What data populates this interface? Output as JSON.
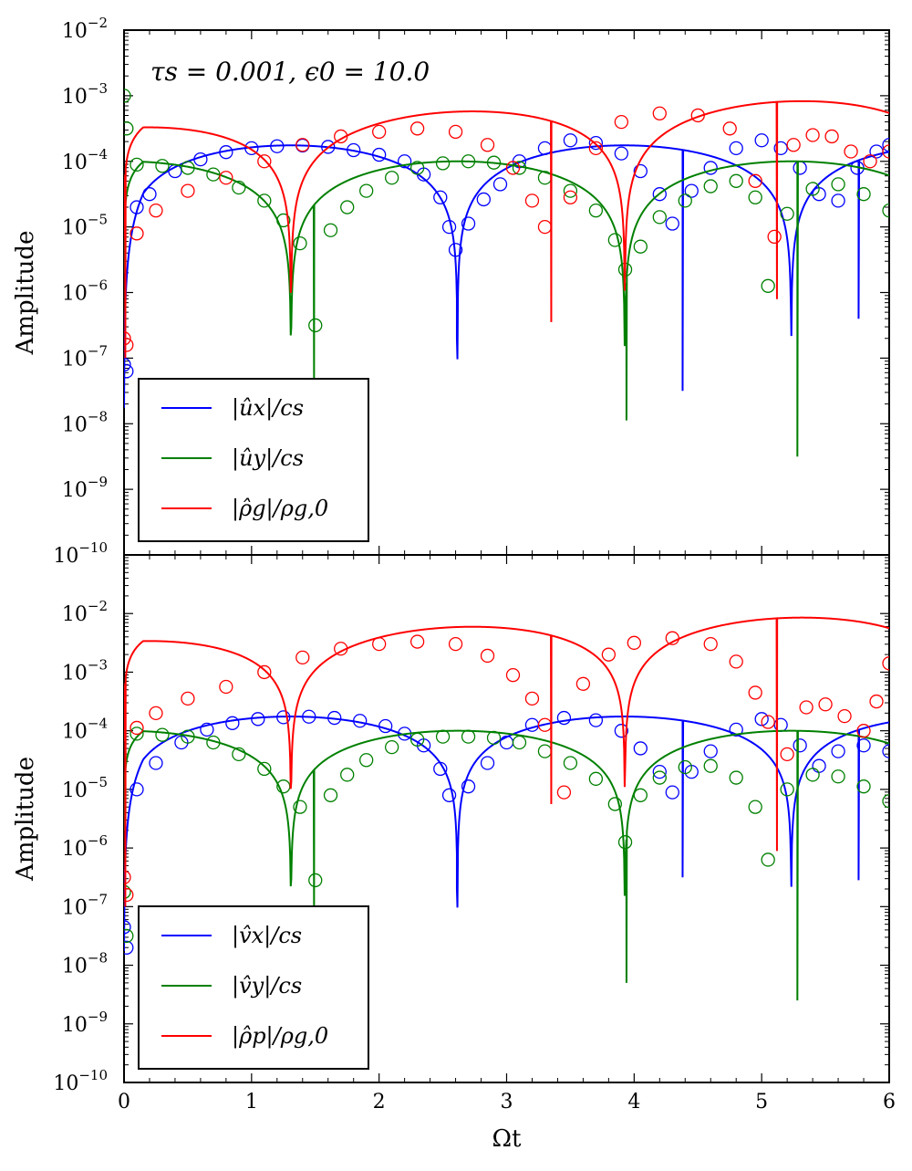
{
  "chart_data": [
    {
      "type": "line",
      "panel": "top",
      "annotation": "τs = 0.001, ϵ0 = 10.0",
      "ylabel": "Amplitude",
      "xlabel": "",
      "xlim": [
        0,
        6
      ],
      "ylim_exp": [
        -10,
        -2
      ],
      "yscale": "log",
      "yticks": [
        {
          "base": "10",
          "exp": "−10"
        },
        {
          "base": "10",
          "exp": "−9"
        },
        {
          "base": "10",
          "exp": "−8"
        },
        {
          "base": "10",
          "exp": "−7"
        },
        {
          "base": "10",
          "exp": "−6"
        },
        {
          "base": "10",
          "exp": "−5"
        },
        {
          "base": "10",
          "exp": "−4"
        },
        {
          "base": "10",
          "exp": "−3"
        },
        {
          "base": "10",
          "exp": "−2"
        }
      ],
      "legend_position": "lower-left",
      "series": [
        {
          "name": "|ûx|/cs",
          "color": "#0000ff",
          "line": {
            "A": 0.000175,
            "omega": 1.2,
            "phase": 0.005,
            "nulls": [
              [
                2.61,
                -6.7
              ],
              [
                4.38,
                -7.5
              ],
              [
                5.76,
                -6.4
              ]
            ]
          },
          "points": [
            [
              0,
              -7.1
            ],
            [
              0.02,
              -7.2
            ],
            [
              0.1,
              -4.7
            ],
            [
              0.2,
              -4.5
            ],
            [
              0.4,
              -4.15
            ],
            [
              0.6,
              -3.97
            ],
            [
              0.8,
              -3.86
            ],
            [
              1.0,
              -3.8
            ],
            [
              1.2,
              -3.77
            ],
            [
              1.4,
              -3.76
            ],
            [
              1.6,
              -3.78
            ],
            [
              1.8,
              -3.83
            ],
            [
              2.0,
              -3.9
            ],
            [
              2.2,
              -4.0
            ],
            [
              2.35,
              -4.2
            ],
            [
              2.48,
              -4.55
            ],
            [
              2.55,
              -5.0
            ],
            [
              2.6,
              -5.35
            ],
            [
              2.7,
              -4.95
            ],
            [
              2.82,
              -4.58
            ],
            [
              2.95,
              -4.35
            ],
            [
              3.1,
              -4.0
            ],
            [
              3.3,
              -3.8
            ],
            [
              3.5,
              -3.68
            ],
            [
              3.7,
              -3.72
            ],
            [
              3.9,
              -3.88
            ],
            [
              4.05,
              -4.15
            ],
            [
              4.2,
              -4.5
            ],
            [
              4.3,
              -4.95
            ],
            [
              4.45,
              -4.45
            ],
            [
              4.6,
              -4.1
            ],
            [
              4.8,
              -3.8
            ],
            [
              5.0,
              -3.68
            ],
            [
              5.15,
              -3.8
            ],
            [
              5.3,
              -4.1
            ],
            [
              5.45,
              -4.5
            ],
            [
              5.6,
              -4.6
            ],
            [
              5.75,
              -4.1
            ],
            [
              5.9,
              -3.85
            ],
            [
              6.0,
              -3.75
            ]
          ]
        },
        {
          "name": "|ûy|/cs",
          "color": "#008000",
          "line": {
            "A": 0.0001,
            "omega": 1.2,
            "phase": 1.5708,
            "nulls": [
              [
                1.49,
                -7.3
              ],
              [
                3.94,
                -7.95
              ],
              [
                5.28,
                -8.5
              ]
            ]
          },
          "points": [
            [
              0,
              -3.0
            ],
            [
              0.02,
              -3.5
            ],
            [
              0.1,
              -4.05
            ],
            [
              0.3,
              -4.07
            ],
            [
              0.5,
              -4.1
            ],
            [
              0.7,
              -4.2
            ],
            [
              0.9,
              -4.4
            ],
            [
              1.1,
              -4.6
            ],
            [
              1.25,
              -4.9
            ],
            [
              1.38,
              -5.25
            ],
            [
              1.5,
              -6.5
            ],
            [
              1.62,
              -5.05
            ],
            [
              1.75,
              -4.7
            ],
            [
              1.9,
              -4.45
            ],
            [
              2.1,
              -4.25
            ],
            [
              2.3,
              -4.1
            ],
            [
              2.5,
              -4.03
            ],
            [
              2.7,
              -4.0
            ],
            [
              2.9,
              -4.02
            ],
            [
              3.1,
              -4.1
            ],
            [
              3.3,
              -4.25
            ],
            [
              3.5,
              -4.45
            ],
            [
              3.7,
              -4.75
            ],
            [
              3.85,
              -5.2
            ],
            [
              3.93,
              -5.65
            ],
            [
              4.05,
              -5.3
            ],
            [
              4.2,
              -4.85
            ],
            [
              4.4,
              -4.6
            ],
            [
              4.6,
              -4.38
            ],
            [
              4.8,
              -4.3
            ],
            [
              4.95,
              -4.55
            ],
            [
              5.05,
              -5.9
            ],
            [
              5.2,
              -4.8
            ],
            [
              5.4,
              -4.42
            ],
            [
              5.6,
              -4.35
            ],
            [
              5.8,
              -4.5
            ],
            [
              6.0,
              -4.75
            ]
          ]
        },
        {
          "name": "|ρ̂g|/ρg,0",
          "color": "#ff0000",
          "line": {
            "A": 0.00032,
            "omega": 1.2,
            "phase": 1.5708,
            "growth": 0.3,
            "nulls": [
              [
                0.01,
                -7.0
              ],
              [
                3.35,
                -6.45
              ],
              [
                5.12,
                -6.1
              ]
            ]
          },
          "points": [
            [
              0,
              -6.7
            ],
            [
              0.02,
              -6.8
            ],
            [
              0.1,
              -5.1
            ],
            [
              0.25,
              -4.75
            ],
            [
              0.5,
              -4.45
            ],
            [
              0.8,
              -4.25
            ],
            [
              1.1,
              -4.0
            ],
            [
              1.4,
              -3.75
            ],
            [
              1.7,
              -3.62
            ],
            [
              2.0,
              -3.55
            ],
            [
              2.3,
              -3.5
            ],
            [
              2.6,
              -3.55
            ],
            [
              2.85,
              -3.75
            ],
            [
              3.05,
              -4.1
            ],
            [
              3.2,
              -4.6
            ],
            [
              3.3,
              -5.0
            ],
            [
              3.5,
              -4.55
            ],
            [
              3.7,
              -3.8
            ],
            [
              3.9,
              -3.4
            ],
            [
              4.2,
              -3.27
            ],
            [
              4.5,
              -3.3
            ],
            [
              4.75,
              -3.5
            ],
            [
              4.95,
              -4.3
            ],
            [
              5.1,
              -5.15
            ],
            [
              5.25,
              -3.75
            ],
            [
              5.4,
              -3.6
            ],
            [
              5.55,
              -3.62
            ],
            [
              5.7,
              -3.85
            ],
            [
              5.85,
              -4.0
            ],
            [
              6.0,
              -3.85
            ]
          ]
        }
      ]
    },
    {
      "type": "line",
      "panel": "bottom",
      "ylabel": "Amplitude",
      "xlabel": "Ωt",
      "xlim": [
        0,
        6
      ],
      "ylim_exp": [
        -10,
        -1
      ],
      "yscale": "log",
      "xticks": [
        "0",
        "1",
        "2",
        "3",
        "4",
        "5",
        "6"
      ],
      "yticks": [
        {
          "base": "10",
          "exp": "−10"
        },
        {
          "base": "10",
          "exp": "−9"
        },
        {
          "base": "10",
          "exp": "−8"
        },
        {
          "base": "10",
          "exp": "−7"
        },
        {
          "base": "10",
          "exp": "−6"
        },
        {
          "base": "10",
          "exp": "−5"
        },
        {
          "base": "10",
          "exp": "−4"
        },
        {
          "base": "10",
          "exp": "−3"
        },
        {
          "base": "10",
          "exp": "−2"
        }
      ],
      "legend_position": "lower-left",
      "series": [
        {
          "name": "|v̂x|/cs",
          "color": "#0000ff",
          "line": {
            "A": 0.000175,
            "omega": 1.2,
            "phase": 0.005,
            "nulls": [
              [
                2.61,
                -6.7
              ],
              [
                4.38,
                -6.5
              ],
              [
                5.76,
                -6.55
              ]
            ]
          },
          "points": [
            [
              0,
              -7.35
            ],
            [
              0.02,
              -7.7
            ],
            [
              0.1,
              -5.0
            ],
            [
              0.25,
              -4.55
            ],
            [
              0.45,
              -4.2
            ],
            [
              0.65,
              -3.98
            ],
            [
              0.85,
              -3.87
            ],
            [
              1.05,
              -3.8
            ],
            [
              1.25,
              -3.77
            ],
            [
              1.45,
              -3.76
            ],
            [
              1.65,
              -3.78
            ],
            [
              1.85,
              -3.83
            ],
            [
              2.05,
              -3.92
            ],
            [
              2.2,
              -4.05
            ],
            [
              2.35,
              -4.25
            ],
            [
              2.48,
              -4.65
            ],
            [
              2.55,
              -5.1
            ],
            [
              2.7,
              -4.95
            ],
            [
              2.85,
              -4.55
            ],
            [
              3.0,
              -4.2
            ],
            [
              3.2,
              -3.9
            ],
            [
              3.45,
              -3.78
            ],
            [
              3.7,
              -3.82
            ],
            [
              3.9,
              -4.0
            ],
            [
              4.05,
              -4.3
            ],
            [
              4.2,
              -4.7
            ],
            [
              4.3,
              -5.05
            ],
            [
              4.45,
              -4.7
            ],
            [
              4.6,
              -4.35
            ],
            [
              4.8,
              -3.98
            ],
            [
              5.0,
              -3.8
            ],
            [
              5.15,
              -3.9
            ],
            [
              5.3,
              -4.25
            ],
            [
              5.45,
              -4.6
            ],
            [
              5.6,
              -4.35
            ],
            [
              5.8,
              -4.25
            ],
            [
              6.0,
              -4.35
            ]
          ]
        },
        {
          "name": "|v̂y|/cs",
          "color": "#008000",
          "line": {
            "A": 0.0001,
            "omega": 1.2,
            "phase": 1.5708,
            "nulls": [
              [
                1.49,
                -7.0
              ],
              [
                3.94,
                -8.3
              ],
              [
                5.28,
                -8.6
              ]
            ]
          },
          "points": [
            [
              0,
              -6.75
            ],
            [
              0.02,
              -7.5
            ],
            [
              0.1,
              -4.05
            ],
            [
              0.3,
              -4.07
            ],
            [
              0.5,
              -4.1
            ],
            [
              0.7,
              -4.2
            ],
            [
              0.9,
              -4.4
            ],
            [
              1.1,
              -4.65
            ],
            [
              1.25,
              -4.95
            ],
            [
              1.38,
              -5.3
            ],
            [
              1.5,
              -6.55
            ],
            [
              1.62,
              -5.1
            ],
            [
              1.75,
              -4.75
            ],
            [
              1.9,
              -4.5
            ],
            [
              2.1,
              -4.28
            ],
            [
              2.3,
              -4.15
            ],
            [
              2.5,
              -4.1
            ],
            [
              2.7,
              -4.1
            ],
            [
              2.9,
              -4.12
            ],
            [
              3.1,
              -4.2
            ],
            [
              3.3,
              -4.35
            ],
            [
              3.5,
              -4.55
            ],
            [
              3.7,
              -4.82
            ],
            [
              3.85,
              -5.25
            ],
            [
              3.93,
              -5.9
            ],
            [
              4.05,
              -5.1
            ],
            [
              4.2,
              -4.8
            ],
            [
              4.4,
              -4.62
            ],
            [
              4.6,
              -4.6
            ],
            [
              4.8,
              -4.8
            ],
            [
              4.95,
              -5.3
            ],
            [
              5.05,
              -6.2
            ],
            [
              5.2,
              -5.0
            ],
            [
              5.4,
              -4.75
            ],
            [
              5.6,
              -4.78
            ],
            [
              5.8,
              -4.95
            ],
            [
              6.0,
              -5.2
            ]
          ]
        },
        {
          "name": "|ρ̂p|/ρg,0",
          "color": "#ff0000",
          "line": {
            "A": 0.0033,
            "omega": 1.2,
            "phase": 1.5708,
            "growth": 0.3,
            "nulls": [
              [
                0.01,
                -7.0
              ],
              [
                3.35,
                -5.25
              ],
              [
                5.12,
                -6.05
              ]
            ]
          },
          "points": [
            [
              0,
              -6.5
            ],
            [
              0.02,
              -6.8
            ],
            [
              0.1,
              -3.95
            ],
            [
              0.25,
              -3.7
            ],
            [
              0.5,
              -3.45
            ],
            [
              0.8,
              -3.25
            ],
            [
              1.1,
              -3.0
            ],
            [
              1.4,
              -2.75
            ],
            [
              1.7,
              -2.6
            ],
            [
              2.0,
              -2.52
            ],
            [
              2.3,
              -2.48
            ],
            [
              2.6,
              -2.52
            ],
            [
              2.85,
              -2.72
            ],
            [
              3.05,
              -3.05
            ],
            [
              3.2,
              -3.45
            ],
            [
              3.3,
              -3.9
            ],
            [
              3.45,
              -5.05
            ],
            [
              3.6,
              -3.2
            ],
            [
              3.8,
              -2.7
            ],
            [
              4.0,
              -2.5
            ],
            [
              4.3,
              -2.42
            ],
            [
              4.6,
              -2.52
            ],
            [
              4.8,
              -2.82
            ],
            [
              4.95,
              -3.35
            ],
            [
              5.05,
              -3.85
            ],
            [
              5.2,
              -4.4
            ],
            [
              5.35,
              -3.6
            ],
            [
              5.5,
              -3.55
            ],
            [
              5.65,
              -3.75
            ],
            [
              5.8,
              -4.0
            ],
            [
              5.9,
              -3.5
            ],
            [
              6.0,
              -2.85
            ]
          ]
        }
      ]
    }
  ]
}
